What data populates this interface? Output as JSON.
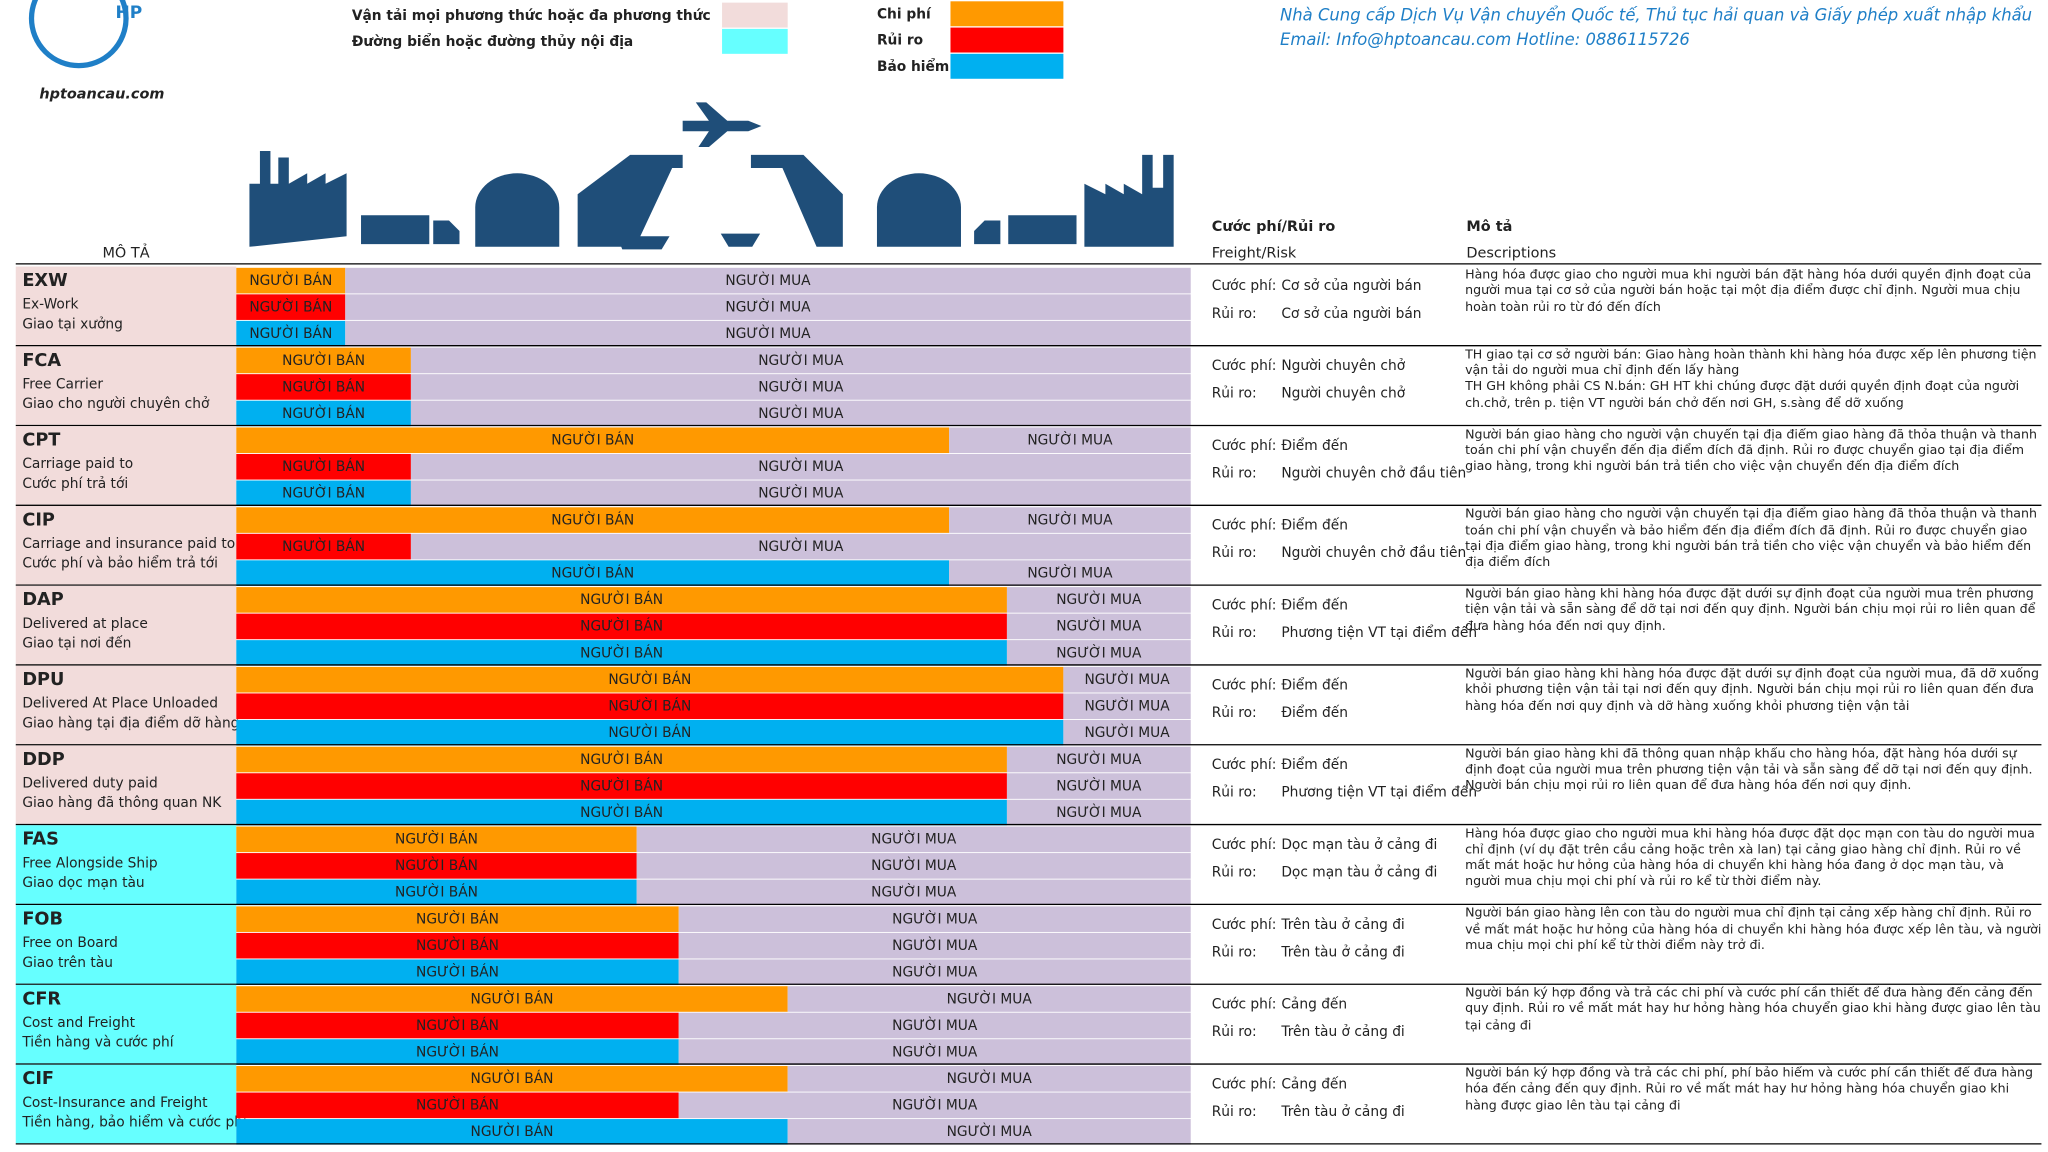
{
  "header": {
    "site": "hptoancau.com",
    "company": "Nhà Cung cấp Dịch Vụ Vận chuyển Quốc tế, Thủ tục hải quan và Giấy phép xuất nhập khẩu",
    "email": "Email: Info@hptoancau.com",
    "hotline": "Hotline: 0886115726",
    "logo": "HP"
  },
  "legend": {
    "modes": [
      {
        "label": "Vận tải mọi phương thức hoặc đa phương thức",
        "color": "#f2dcdb"
      },
      {
        "label": "Đường biển hoặc đường thủy nội địa",
        "color": "#66ffff"
      }
    ],
    "bars": [
      {
        "label": "Chi phí",
        "color": "#ff9900"
      },
      {
        "label": "Rủi ro",
        "color": "#ff0000"
      },
      {
        "label": "Bảo hiểm",
        "color": "#00b0f0"
      }
    ]
  },
  "columns": {
    "desc": "MÔ TẢ",
    "freight": "Cước phí/Rủi ro",
    "freight_en": "Freight/Risk",
    "description": "Mô tả",
    "description_en": "Descriptions"
  },
  "labels": {
    "seller": "NGƯỜI BÁN",
    "buyer": "NGƯỜI MUA",
    "cost": "Cước phí:",
    "risk": "Rủi ro:",
    "buyer_color": "#ccc0da"
  },
  "rows": [
    {
      "code": "EXW",
      "en": "Ex-Work",
      "vn": "Giao tại xưởng",
      "cost": "Cơ sở của người bán",
      "risk": "Cơ sở của người bán",
      "color": "#f2dcdb",
      "description": "Hàng hóa được giao cho người mua khi người bán đặt hàng hóa dưới quyền định đoạt của người mua tại cơ sở của người bán hoặc tại một địa điểm được chỉ định. Người mua chịu hoàn toàn rủi ro từ đó đến đích"
    },
    {
      "code": "FCA",
      "en": "Free Carrier",
      "vn": "Giao cho người chuyên chở",
      "cost": "Người chuyên chở",
      "risk": "Người chuyên chở",
      "color": "#f2dcdb",
      "description": "TH giao tại cơ sở người bán: Giao hàng hoàn thành khi hàng hóa được xếp lên phương tiện vận tải do người mua chỉ định đến lấy hàng\nTH GH không phải CS N.bán: GH HT khi chúng được đặt dưới quyền định đoạt của người ch.chở, trên p. tiện VT người bán chở đến nơi GH, s.sàng để dỡ xuống"
    },
    {
      "code": "CPT",
      "en": "Carriage paid to",
      "vn": " Cước phí trả tới",
      "cost": "Điểm đến",
      "risk": "Người chuyên chở đầu tiên",
      "color": "#f2dcdb",
      "description": "Người bán giao hàng cho người vận chuyển tại địa điểm giao hàng đã thỏa thuận và thanh toán chi phí vận chuyển đến địa điểm đích đã định. Rủi ro được chuyển giao tại địa điểm giao hàng, trong khi người bán trả tiền cho việc vận chuyển đến địa điểm đích"
    },
    {
      "code": "CIP",
      "en": "Carriage and insurance paid to",
      "vn": "Cước phí và bảo hiểm trả tới",
      "cost": "Điểm đến",
      "risk": "Người chuyên chở đầu tiên",
      "color": "#f2dcdb",
      "description": "Người bán giao hàng cho người vận chuyển tại địa điểm giao hàng đã thỏa thuận và thanh toán chi phí vận chuyển và bảo hiểm đến địa điểm đích đã định. Rủi ro được chuyển giao tại địa điểm giao hàng, trong khi người bán trả tiền cho việc vận chuyển và bảo hiểm đến địa điểm đích"
    },
    {
      "code": "DAP",
      "en": "Delivered at place",
      "vn": "Giao tại nơi đến",
      "cost": "Điểm đến",
      "risk": "Phương tiện VT tại điểm đến",
      "color": "#f2dcdb",
      "description": "Người bán giao hàng khi hàng hóa được đặt dưới sự định đoạt của người mua trên phương tiện vận tải và sẵn sàng để dỡ tại nơi đến quy định. Người bán chịu mọi rủi ro liên quan để đưa hàng hóa đến nơi quy định."
    },
    {
      "code": "DPU",
      "en": "Delivered At Place Unloaded",
      "vn": "Giao hàng tại địa điểm dỡ hàng",
      "cost": "Điểm đến",
      "risk": "Điểm đến",
      "color": "#f2dcdb",
      "description": "Người bán giao hàng khi hàng hóa được đặt dưới sự định đoạt của người mua, đã dỡ xuống khỏi phương tiện vận tải tại nơi đến quy định. Người bán chịu mọi rủi ro liên quan đến đưa hàng hóa đến nơi quy định và dỡ hàng xuống khỏi phương tiện vận tải"
    },
    {
      "code": "DDP",
      "en": "Delivered duty paid",
      "vn": "Giao hàng đã thông quan NK",
      "cost": "Điểm đến",
      "risk": "Phương tiện VT tại điểm đến",
      "color": "#f2dcdb",
      "description": "Người bán giao hàng khi đã thông quan nhập khẩu cho hàng hóa, đặt hàng hóa dưới sự định đoạt của người mua trên phương tiện vận tải và sẵn sàng để dỡ tại nơi đến quy định. Người bán chịu mọi rủi ro liên quan để đưa hàng hóa đến nơi quy định."
    },
    {
      "code": "FAS",
      "en": "Free Alongside Ship",
      "vn": " Giao dọc mạn tàu",
      "cost": "Dọc mạn tàu ở cảng đi",
      "risk": "Dọc mạn tàu ở cảng đi",
      "color": "#66ffff",
      "description": "Hàng hóa được giao cho người mua khi hàng hóa được đặt dọc mạn con tàu do người mua chỉ định (ví dụ đặt trên cầu cảng hoặc trên xà lan) tại cảng giao hàng chỉ định. Rủi ro về mất mát hoặc hư hỏng của hàng hóa di chuyển khi hàng hóa đang ở dọc mạn tàu, và người mua chịu mọi chi phí và rủi ro kể từ thời điểm này."
    },
    {
      "code": "FOB",
      "en": "Free on Board",
      "vn": " Giao trên tàu",
      "cost": "Trên tàu ở cảng đi",
      "risk": "Trên tàu ở cảng đi",
      "color": "#66ffff",
      "description": "Người bán giao hàng lên con tàu do người mua chỉ định tại cảng xếp hàng chỉ định. Rủi ro về mất mát hoặc hư hỏng của hàng hóa di chuyển khi hàng hóa được xếp lên tàu, và người mua chịu mọi chi phí kể từ thời điểm này trở đi."
    },
    {
      "code": "CFR",
      "en": "Cost and Freight",
      "vn": " Tiền hàng và cước phí",
      "cost": "Cảng đến",
      "risk": "Trên tàu ở cảng đi",
      "color": "#66ffff",
      "description": "Người bán ký hợp đồng và trả các chi phí và cước phí cần thiết để đưa hàng đến cảng đến quy định. Rủi ro về mất mát hay hư hỏng hàng hóa chuyển giao khi hàng được giao lên tàu tại cảng đi"
    },
    {
      "code": "CIF",
      "en": "Cost-Insurance and Freight",
      "vn": "Tiền hàng, bảo hiểm và cước phí",
      "cost": "Cảng đến",
      "risk": "Trên tàu ở cảng đi",
      "color": "#66ffff",
      "description": "Người bán ký hợp đồng và trả các chi phí, phí bảo hiểm và cước phí cần thiết để đưa hàng hóa đến cảng đến quy định. Rủi ro về mất mát hay hư hỏng hàng hóa chuyển giao khi hàng được giao lên tàu tại cảng đi"
    }
  ]
}
